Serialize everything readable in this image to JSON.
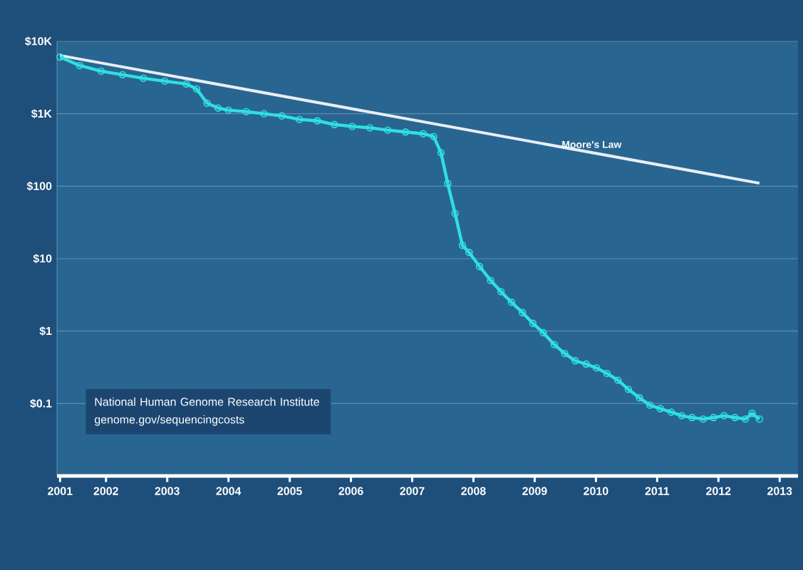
{
  "chart_data": {
    "type": "line",
    "x": [
      2001.25,
      2001.57,
      2001.92,
      2002.27,
      2002.61,
      2002.96,
      2003.31,
      2003.48,
      2003.65,
      2003.83,
      2004.0,
      2004.29,
      2004.58,
      2004.87,
      2005.16,
      2005.45,
      2005.73,
      2006.02,
      2006.31,
      2006.6,
      2006.89,
      2007.18,
      2007.35,
      2007.47,
      2007.58,
      2007.7,
      2007.82,
      2007.93,
      2008.1,
      2008.28,
      2008.45,
      2008.62,
      2008.8,
      2008.97,
      2009.14,
      2009.32,
      2009.49,
      2009.66,
      2009.84,
      2010.01,
      2010.18,
      2010.36,
      2010.53,
      2010.71,
      2010.88,
      2011.05,
      2011.23,
      2011.4,
      2011.57,
      2011.75,
      2011.92,
      2012.09,
      2012.27,
      2012.44,
      2012.55,
      2012.67
    ],
    "series": [
      {
        "name": "Moore's Law",
        "color": "#e8eef5",
        "marker": "none",
        "x": [
          2001.25,
          2012.67
        ],
        "values": [
          6370,
          110
        ]
      },
      {
        "color": "#2fe0e0",
        "marker": "circle",
        "values": [
          6080,
          4640,
          3870,
          3460,
          3090,
          2820,
          2580,
          2200,
          1400,
          1200,
          1120,
          1070,
          1000,
          935,
          835,
          800,
          710,
          670,
          640,
          595,
          560,
          530,
          485,
          290,
          109,
          42,
          15.3,
          12.2,
          7.8,
          5.0,
          3.5,
          2.5,
          1.8,
          1.28,
          0.95,
          0.65,
          0.49,
          0.39,
          0.35,
          0.31,
          0.26,
          0.21,
          0.157,
          0.12,
          0.095,
          0.085,
          0.076,
          0.068,
          0.064,
          0.061,
          0.064,
          0.068,
          0.064,
          0.061,
          0.073,
          0.061
        ]
      }
    ],
    "log": "y",
    "xlim": [
      2001.2,
      2013.3
    ],
    "xticks": [
      {
        "value": 2001.25,
        "label": "2001"
      },
      2002,
      2003,
      2004,
      2005,
      2006,
      2007,
      2008,
      2009,
      2010,
      2011,
      2012,
      2013
    ],
    "ylim": [
      0.01,
      10000
    ],
    "yticks": [
      {
        "value": 10000,
        "label": "$10K"
      },
      {
        "value": 1000,
        "label": "$1K"
      },
      {
        "value": 100,
        "label": "$100"
      },
      {
        "value": 10,
        "label": "$10"
      },
      {
        "value": 1,
        "label": "$1"
      },
      {
        "value": 0.1,
        "label": "$0.1"
      }
    ],
    "grid": "y",
    "annotations": [
      "National Human Genome Research Institute",
      "genome.gov/sequencingcosts"
    ]
  }
}
